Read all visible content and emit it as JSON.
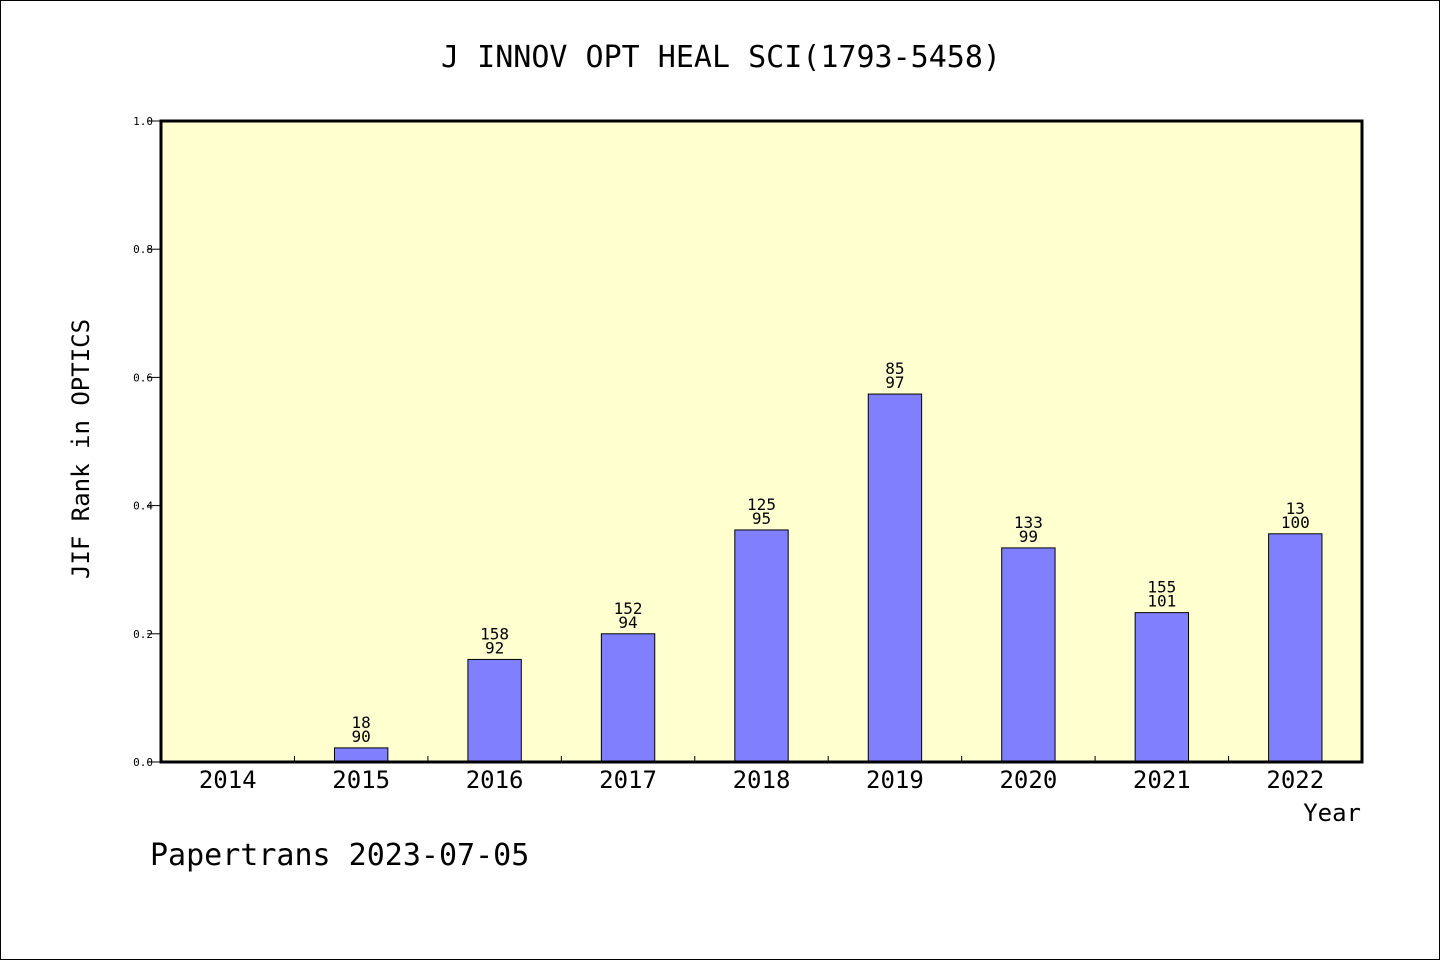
{
  "chart_data": {
    "type": "bar",
    "title": "J INNOV OPT HEAL SCI(1793-5458)",
    "xlabel": "Year",
    "ylabel": "JIF Rank in OPTICS",
    "ylim": [
      0,
      1.0
    ],
    "yticks": [
      0.0,
      0.2,
      0.4,
      0.6,
      0.8,
      1.0
    ],
    "ytick_labels": [
      "0.0",
      "0.2",
      "0.4",
      "0.6",
      "0.8",
      "1.0"
    ],
    "categories": [
      "2014",
      "2015",
      "2016",
      "2017",
      "2018",
      "2019",
      "2020",
      "2021",
      "2022"
    ],
    "values": [
      null,
      0.022,
      0.16,
      0.2,
      0.362,
      0.574,
      0.334,
      0.233,
      0.356
    ],
    "labels_top": [
      "",
      "18",
      "158",
      "152",
      "125",
      "85",
      "133",
      "155",
      "13"
    ],
    "labels_bottom": [
      "",
      "90",
      "92",
      "94",
      "95",
      "97",
      "99",
      "101",
      "100"
    ],
    "bar_color": "#8080ff",
    "plot_background": "#ffffd0",
    "grid": false,
    "legend": "none"
  },
  "footer": {
    "text": "Papertrans 2023-07-05"
  }
}
